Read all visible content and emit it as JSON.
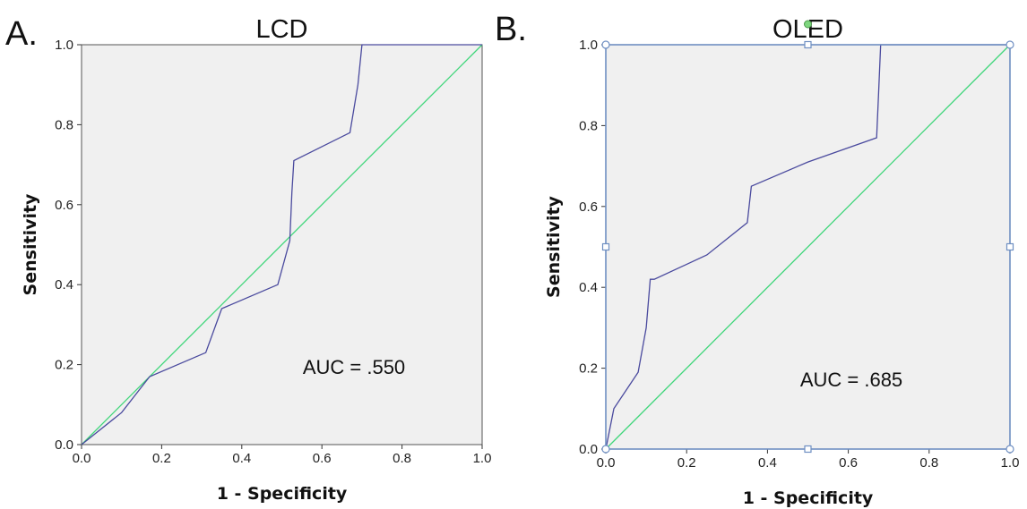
{
  "colors": {
    "roc": "#4a4a9e",
    "reference": "#3fd67a",
    "plot_bg": "#f0f0f0",
    "selection": "#6f8fc2"
  },
  "chart_data": [
    {
      "type": "line",
      "panel_label": "A.",
      "title": "LCD",
      "xlabel": "1 - Specificity",
      "ylabel": "Sensitivity",
      "xlim": [
        0,
        1
      ],
      "ylim": [
        0,
        1
      ],
      "xticks": [
        "0.0",
        "0.2",
        "0.4",
        "0.6",
        "0.8",
        "1.0"
      ],
      "yticks": [
        "0.0",
        "0.2",
        "0.4",
        "0.6",
        "0.8",
        "1.0"
      ],
      "annotation": "AUC = .550",
      "grid": false,
      "series": [
        {
          "x": [
            0,
            0.1,
            0.17,
            0.31,
            0.35,
            0.49,
            0.52,
            0.525,
            0.53,
            0.67,
            0.69,
            0.7,
            1.0
          ],
          "y": [
            0,
            0.08,
            0.17,
            0.23,
            0.34,
            0.4,
            0.51,
            0.63,
            0.71,
            0.78,
            0.9,
            1.0,
            1.0
          ]
        },
        {
          "x": [
            0,
            1
          ],
          "y": [
            0,
            1
          ]
        }
      ],
      "selected": false
    },
    {
      "type": "line",
      "panel_label": "B.",
      "title": "OLED",
      "xlabel": "1 - Specificity",
      "ylabel": "Sensitivity",
      "xlim": [
        0,
        1
      ],
      "ylim": [
        0,
        1
      ],
      "xticks": [
        "0.0",
        "0.2",
        "0.4",
        "0.6",
        "0.8",
        "1.0"
      ],
      "yticks": [
        "0.0",
        "0.2",
        "0.4",
        "0.6",
        "0.8",
        "1.0"
      ],
      "annotation": "AUC = .685",
      "grid": false,
      "series": [
        {
          "x": [
            0,
            0.02,
            0.08,
            0.1,
            0.11,
            0.12,
            0.25,
            0.35,
            0.36,
            0.5,
            0.67,
            0.675,
            0.68,
            1.0
          ],
          "y": [
            0,
            0.1,
            0.19,
            0.3,
            0.42,
            0.42,
            0.48,
            0.56,
            0.65,
            0.71,
            0.77,
            0.88,
            1.0,
            1.0
          ]
        },
        {
          "x": [
            0,
            1
          ],
          "y": [
            0,
            1
          ]
        }
      ],
      "selected": true
    }
  ]
}
